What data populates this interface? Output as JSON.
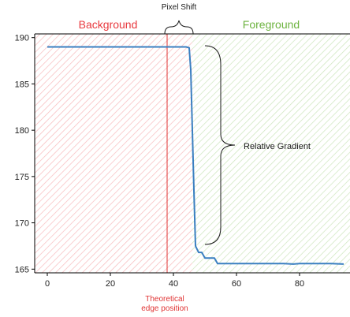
{
  "colors": {
    "series": "#3a7fc1",
    "background_region": "#e8383d",
    "foreground_region": "#6db33f",
    "edge_line": "#e03535",
    "annotation": "#1a1a1a",
    "axis": "#000000"
  },
  "chart_data": {
    "type": "line",
    "title": "",
    "xlabel": "",
    "ylabel": "",
    "xlim": [
      -4,
      96
    ],
    "ylim": [
      164.6,
      190.4
    ],
    "xticks": [
      0,
      20,
      40,
      60,
      80
    ],
    "yticks": [
      165,
      170,
      175,
      180,
      185,
      190
    ],
    "grid": false,
    "series": [
      {
        "values_x": [
          0,
          5,
          10,
          15,
          20,
          25,
          30,
          35,
          40,
          44,
          45,
          45.5,
          46,
          46.5,
          47,
          48,
          49,
          50,
          51,
          52,
          53,
          54,
          55,
          60,
          65,
          70,
          75,
          78,
          80,
          85,
          90,
          94
        ],
        "values_y": [
          189.0,
          189.0,
          189.0,
          189.0,
          189.0,
          189.0,
          189.0,
          189.0,
          189.0,
          189.0,
          188.9,
          186.5,
          180.0,
          173.5,
          167.5,
          166.8,
          166.8,
          166.2,
          166.2,
          166.2,
          166.2,
          165.6,
          165.6,
          165.6,
          165.6,
          165.6,
          165.6,
          165.55,
          165.6,
          165.6,
          165.6,
          165.55
        ]
      }
    ],
    "regions": [
      {
        "label": "Background",
        "x_range": [
          -4,
          46
        ]
      },
      {
        "label": "Foreground",
        "x_range": [
          46,
          96
        ]
      }
    ],
    "vertical_line": {
      "x": 38,
      "label_lines": [
        "Theoretical",
        "edge position"
      ]
    },
    "annotations": {
      "pixel_shift": "Pixel Shift",
      "relative_gradient": "Relative Gradient"
    }
  }
}
